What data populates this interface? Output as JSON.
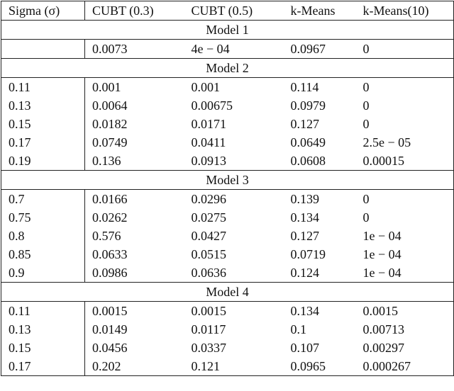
{
  "table": {
    "header": [
      "Sigma (σ)",
      "CUBT (0.3)",
      "CUBT (0.5)",
      "k-Means",
      "k-Means(10)"
    ],
    "sections": [
      {
        "title": "Model 1",
        "rows": [
          [
            null,
            "0.0073",
            "4e − 04",
            "0.0967",
            "0"
          ]
        ]
      },
      {
        "title": "Model 2",
        "rows": [
          [
            "0.11",
            "0.001",
            "0.001",
            "0.114",
            "0"
          ],
          [
            "0.13",
            "0.0064",
            "0.00675",
            "0.0979",
            "0"
          ],
          [
            "0.15",
            "0.0182",
            "0.0171",
            "0.127",
            "0"
          ],
          [
            "0.17",
            "0.0749",
            "0.0411",
            "0.0649",
            "2.5e − 05"
          ],
          [
            "0.19",
            "0.136",
            "0.0913",
            "0.0608",
            "0.00015"
          ]
        ]
      },
      {
        "title": "Model 3",
        "rows": [
          [
            "0.7",
            "0.0166",
            "0.0296",
            "0.139",
            "0"
          ],
          [
            "0.75",
            "0.0262",
            "0.0275",
            "0.134",
            "0"
          ],
          [
            "0.8",
            "0.576",
            "0.0427",
            "0.127",
            "1e − 04"
          ],
          [
            "0.85",
            "0.0633",
            "0.0515",
            "0.0719",
            "1e − 04"
          ],
          [
            "0.9",
            "0.0986",
            "0.0636",
            "0.124",
            "1e − 04"
          ]
        ]
      },
      {
        "title": "Model 4",
        "rows": [
          [
            "0.11",
            "0.0015",
            "0.0015",
            "0.134",
            "0.0015"
          ],
          [
            "0.13",
            "0.0149",
            "0.0117",
            "0.1",
            "0.00713"
          ],
          [
            "0.15",
            "0.0456",
            "0.0337",
            "0.107",
            "0.00297"
          ],
          [
            "0.17",
            "0.202",
            "0.121",
            "0.0965",
            "0.000267"
          ]
        ]
      }
    ]
  }
}
